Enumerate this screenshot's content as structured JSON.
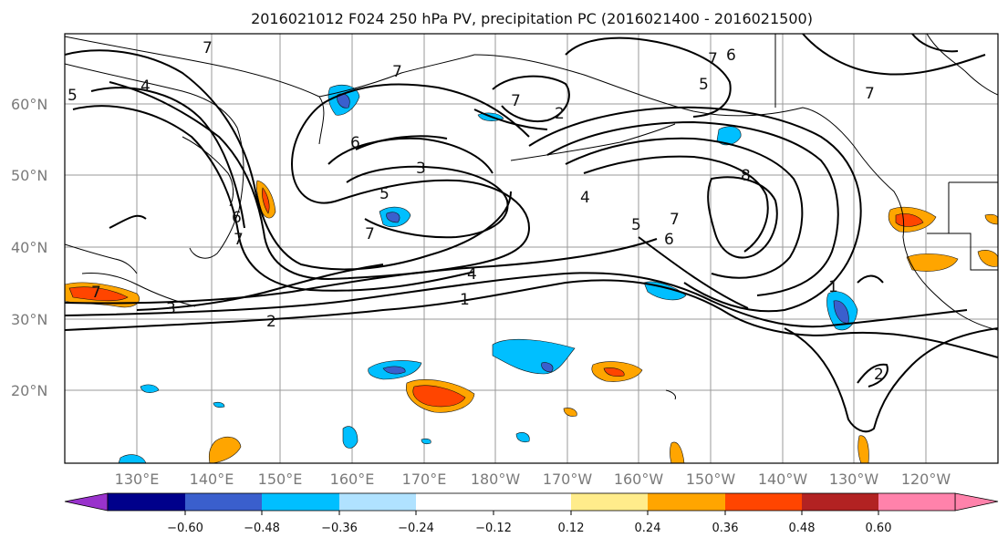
{
  "title": "2016021012 F024 250 hPa PV, precipitation PC (2016021400 - 2016021500)",
  "lat_labels": [
    "60°N",
    "50°N",
    "40°N",
    "30°N",
    "20°N"
  ],
  "lon_labels": [
    "130°E",
    "140°E",
    "150°E",
    "160°E",
    "170°E",
    "180°W",
    "170°W",
    "160°W",
    "150°W",
    "140°W",
    "130°W",
    "120°W"
  ],
  "colorbar": {
    "colors": [
      "#9932cc",
      "#00008b",
      "#3a5fcd",
      "#00bfff",
      "#b0e2ff",
      "#ffffff",
      "#ffec8b",
      "#ffa500",
      "#ff4500",
      "#b22222",
      "#ff82ab"
    ],
    "tick_labels": [
      "−0.60",
      "−0.48",
      "−0.36",
      "−0.24",
      "−0.12",
      "0.12",
      "0.24",
      "0.36",
      "0.48",
      "0.60"
    ]
  },
  "contour_labels": [
    "7",
    "6",
    "5",
    "4",
    "3",
    "2",
    "1",
    "8"
  ]
}
